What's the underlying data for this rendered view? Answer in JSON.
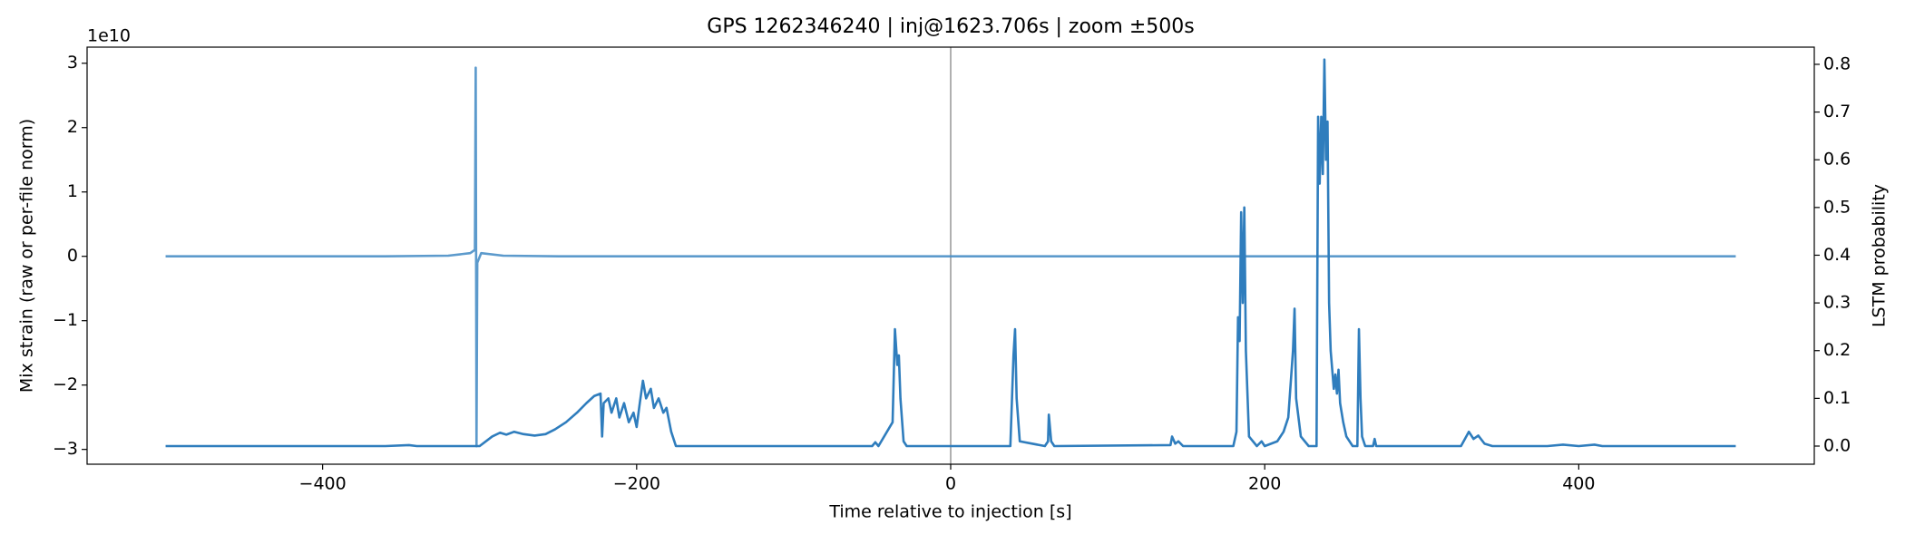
{
  "chart_data": {
    "type": "line",
    "title": "GPS 1262346240 | inj@1623.706s | zoom ±500s",
    "x_label": "Time relative to injection [s]",
    "y_label": "Mix strain (raw or per-file norm)",
    "y2_label": "LSTM probability",
    "y_offset_text": "1e10",
    "xlim": [
      -550,
      550
    ],
    "ylim": [
      -3.23,
      3.25
    ],
    "y2lim": [
      -0.038,
      0.836
    ],
    "xticks": [
      {
        "value": -400,
        "label": "−400"
      },
      {
        "value": -200,
        "label": "−200"
      },
      0,
      200,
      400
    ],
    "yticks": [
      {
        "value": -3,
        "label": "−3"
      },
      {
        "value": -2,
        "label": "−2"
      },
      {
        "value": -1,
        "label": "−1"
      },
      0,
      1,
      2,
      3
    ],
    "y2ticks": [
      {
        "value": 0,
        "label": "0.0"
      },
      0.1,
      0.2,
      0.3,
      0.4,
      0.5,
      0.6,
      0.7,
      0.8
    ],
    "vline_x": 0,
    "vline_color": "#b0b0b0",
    "series": [
      {
        "name": "Mix strain",
        "color": "#4a8fc6",
        "axis": "y",
        "x": [
          -500,
          -360,
          -320,
          -306,
          -303,
          -302.5,
          -302,
          -301.5,
          -299,
          -285,
          -250,
          0,
          200,
          350,
          500
        ],
        "values": [
          0,
          0,
          0.01,
          0.05,
          0.1,
          2.93,
          -2.95,
          -0.1,
          0.05,
          0.01,
          0,
          0,
          0,
          0,
          0
        ]
      },
      {
        "name": "LSTM probability",
        "color": "#2f7dbd",
        "axis": "y2",
        "x": [
          -500,
          -360,
          -345,
          -340,
          -300,
          -292,
          -287,
          -283,
          -278,
          -272,
          -265,
          -258,
          -252,
          -245,
          -238,
          -232,
          -227,
          -223,
          -222,
          -221,
          -218,
          -216,
          -213,
          -211,
          -208,
          -205,
          -202,
          -200,
          -198,
          -196,
          -194,
          -191,
          -189,
          -186,
          -183,
          -181,
          -178,
          -175,
          -50,
          -48,
          -46,
          -37,
          -35.5,
          -34,
          -33,
          -32,
          -30,
          -28,
          38,
          40,
          41,
          42,
          44,
          60,
          62,
          62.5,
          64,
          66,
          140,
          141,
          143,
          145,
          148,
          180,
          182,
          183,
          184,
          185,
          186,
          187,
          188,
          190,
          195,
          198,
          200,
          208,
          212,
          215,
          218,
          219,
          220,
          223,
          228,
          233,
          234,
          235,
          236,
          237,
          238,
          239,
          240,
          241,
          242,
          243,
          244,
          245,
          246,
          247,
          248,
          250,
          252,
          256,
          259,
          260,
          261,
          262,
          264,
          269,
          270,
          271,
          325,
          330,
          333,
          336,
          340,
          345,
          380,
          390,
          400,
          410,
          415,
          500
        ],
        "values": [
          0,
          0,
          0.002,
          0,
          0,
          0.02,
          0.028,
          0.024,
          0.03,
          0.025,
          0.022,
          0.025,
          0.035,
          0.05,
          0.07,
          0.09,
          0.105,
          0.11,
          0.02,
          0.09,
          0.1,
          0.07,
          0.1,
          0.06,
          0.09,
          0.05,
          0.07,
          0.04,
          0.09,
          0.137,
          0.1,
          0.12,
          0.08,
          0.1,
          0.07,
          0.08,
          0.03,
          0,
          0,
          0.008,
          0,
          0.05,
          0.245,
          0.17,
          0.19,
          0.1,
          0.01,
          0,
          0,
          0.19,
          0.245,
          0.1,
          0.01,
          0,
          0.01,
          0.066,
          0.01,
          0,
          0.002,
          0.02,
          0.005,
          0.01,
          0,
          0,
          0.03,
          0.27,
          0.22,
          0.49,
          0.3,
          0.5,
          0.2,
          0.02,
          0,
          0.01,
          0,
          0.01,
          0.03,
          0.06,
          0.2,
          0.288,
          0.1,
          0.02,
          0,
          0,
          0.69,
          0.55,
          0.69,
          0.57,
          0.81,
          0.6,
          0.68,
          0.3,
          0.2,
          0.16,
          0.12,
          0.15,
          0.11,
          0.16,
          0.09,
          0.05,
          0.02,
          0,
          0,
          0.245,
          0.1,
          0.02,
          0,
          0,
          0.015,
          0,
          0,
          0.03,
          0.015,
          0.022,
          0.005,
          0,
          0,
          0.003,
          0,
          0.003,
          0,
          0
        ]
      }
    ]
  }
}
